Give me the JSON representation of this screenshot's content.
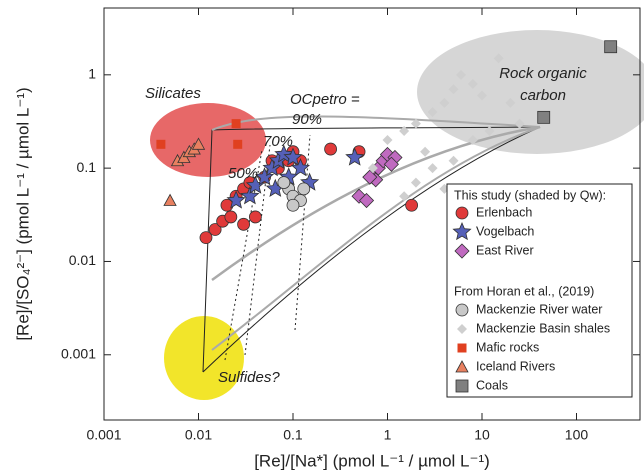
{
  "chart_data": {
    "type": "scatter",
    "xlabel": "[Re]/[Na*] (pmol L⁻¹ / µmol L⁻¹)",
    "ylabel": "[Re]/[SO₄²⁻] (pmol L⁻¹ / µmol L⁻¹)",
    "xscale": "log",
    "yscale": "log",
    "xlim": [
      0.001,
      470
    ],
    "ylim": [
      0.0002,
      5.2
    ],
    "xticks": [
      0.001,
      0.01,
      0.1,
      1,
      10,
      100
    ],
    "yticks": [
      0.001,
      0.01,
      0.1,
      1
    ],
    "annotations": [
      "Silicates",
      "Rock organic",
      "carbon",
      "Sulfides?",
      "OCpetro =",
      "90%",
      "70%",
      "50%"
    ],
    "legend_headings": [
      "This study (shaded by Qw):",
      "From Horan et al., (2019)"
    ],
    "series": [
      {
        "name": "Erlenbach",
        "color": "#e03a3a",
        "marker": "circle",
        "x": [
          0.012,
          0.015,
          0.018,
          0.022,
          0.02,
          0.025,
          0.03,
          0.035,
          0.05,
          0.07,
          0.09,
          0.12,
          0.1,
          0.25,
          0.5,
          1.8,
          0.06,
          0.04,
          0.03
        ],
        "y": [
          0.018,
          0.022,
          0.027,
          0.03,
          0.04,
          0.05,
          0.06,
          0.07,
          0.08,
          0.1,
          0.12,
          0.12,
          0.15,
          0.16,
          0.15,
          0.04,
          0.12,
          0.03,
          0.025
        ]
      },
      {
        "name": "Vogelbach",
        "color": "#5560b8",
        "marker": "star",
        "x": [
          0.025,
          0.035,
          0.04,
          0.05,
          0.06,
          0.07,
          0.08,
          0.1,
          0.12,
          0.15,
          0.09,
          0.065,
          0.45
        ],
        "y": [
          0.045,
          0.05,
          0.065,
          0.08,
          0.1,
          0.12,
          0.14,
          0.13,
          0.1,
          0.07,
          0.08,
          0.06,
          0.13
        ]
      },
      {
        "name": "East River",
        "color": "#c06ac0",
        "marker": "diamond",
        "x": [
          0.8,
          0.9,
          1.0,
          1.2,
          0.7,
          0.75,
          1.1,
          0.5,
          0.6,
          0.65
        ],
        "y": [
          0.1,
          0.12,
          0.14,
          0.13,
          0.08,
          0.075,
          0.11,
          0.05,
          0.045,
          0.08
        ]
      },
      {
        "name": "Mackenzie River water",
        "color": "#c8c8c8",
        "marker": "circle",
        "x": [
          0.09,
          0.1,
          0.12,
          0.1,
          0.13,
          0.08
        ],
        "y": [
          0.06,
          0.05,
          0.045,
          0.04,
          0.06,
          0.07
        ]
      },
      {
        "name": "Mackenzie Basin shales",
        "color": "#cfcfcf",
        "marker": "diamond-small",
        "x": [
          0.7,
          1,
          1.5,
          2,
          2.5,
          3,
          4,
          5,
          6,
          8,
          10,
          15,
          20,
          3,
          2,
          1.5,
          4,
          5,
          8,
          12,
          25
        ],
        "y": [
          0.1,
          0.2,
          0.25,
          0.3,
          0.15,
          0.4,
          0.5,
          0.7,
          1.0,
          0.8,
          0.6,
          1.5,
          0.5,
          0.1,
          0.07,
          0.05,
          0.06,
          0.12,
          0.2,
          0.25,
          0.3
        ]
      },
      {
        "name": "Mafic rocks",
        "color": "#e04020",
        "marker": "square-small",
        "x": [
          0.004,
          0.025,
          0.026
        ],
        "y": [
          0.18,
          0.3,
          0.18
        ]
      },
      {
        "name": "Iceland Rivers",
        "color": "#e88060",
        "marker": "triangle",
        "x": [
          0.005,
          0.006,
          0.007,
          0.008,
          0.009,
          0.01
        ],
        "y": [
          0.045,
          0.12,
          0.13,
          0.15,
          0.16,
          0.18
        ]
      },
      {
        "name": "Coals",
        "color": "#808080",
        "marker": "square",
        "x": [
          45,
          230
        ],
        "y": [
          0.35,
          2.0
        ]
      }
    ]
  }
}
